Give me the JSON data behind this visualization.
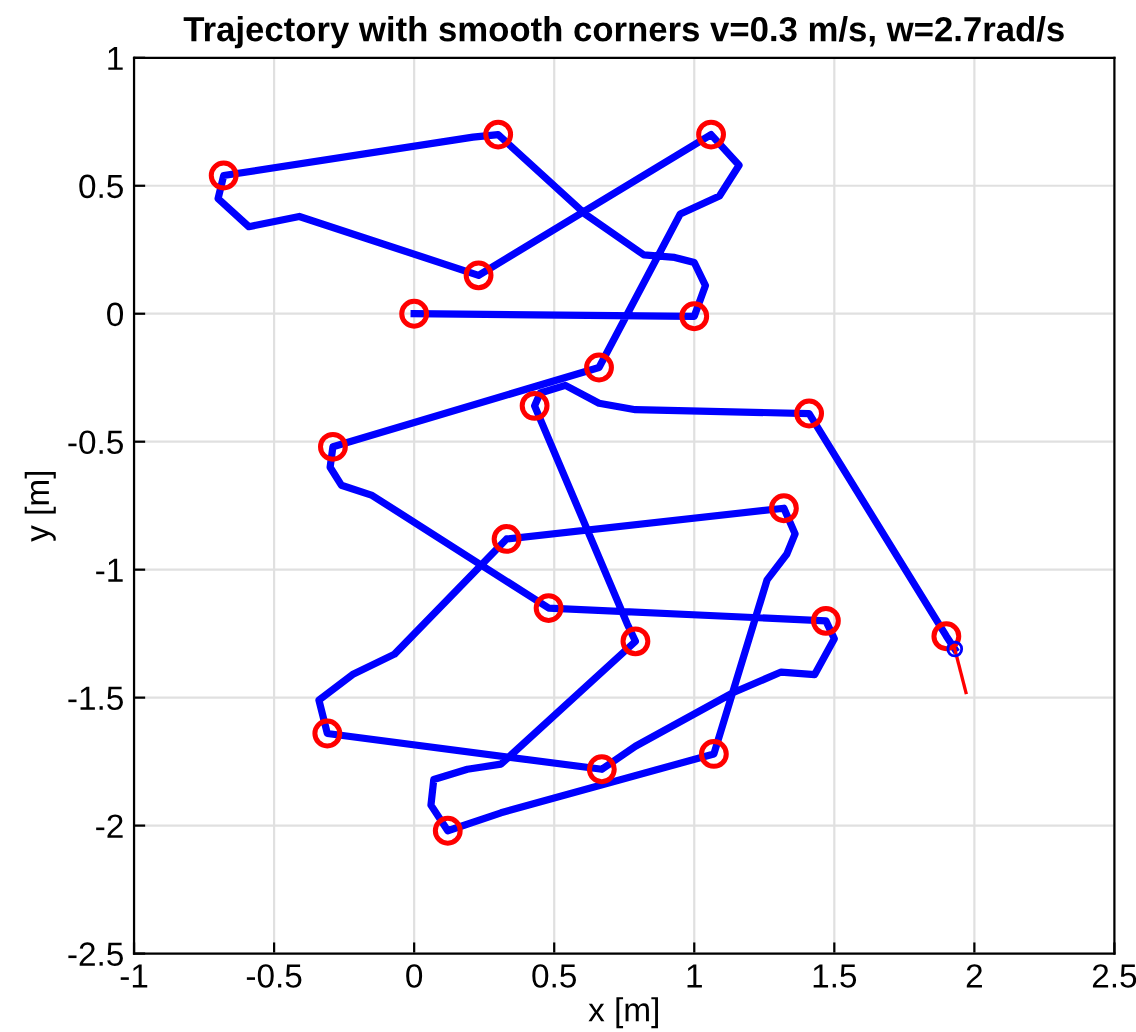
{
  "chart_data": {
    "type": "line",
    "title": "Trajectory with smooth corners v=0.3 m/s, w=2.7rad/s",
    "xlabel": "x [m]",
    "ylabel": "y [m]",
    "xlim": [
      -1,
      2.5
    ],
    "xticks": [
      -1,
      -0.5,
      0,
      0.5,
      1,
      1.5,
      2,
      2.5
    ],
    "ylim": [
      -2.5,
      1
    ],
    "yticks": [
      -2.5,
      -2,
      -1.5,
      -1,
      -0.5,
      0,
      0.5,
      1
    ],
    "grid": true,
    "series": [
      {
        "color": "#0000ff",
        "line_style": "solid",
        "marker": "none",
        "x": [
          0,
          1.0,
          1.04,
          1.0,
          0.93,
          0.82,
          0.61,
          0.3,
          0.21,
          -0.68,
          -0.7,
          -0.59,
          -0.41,
          0.23,
          1.06,
          1.16,
          1.09,
          0.95,
          0.66,
          -0.29,
          -0.3,
          -0.26,
          -0.15,
          0.48,
          1.47,
          1.5,
          1.43,
          1.31,
          1.14,
          0.79,
          0.67,
          -0.31,
          -0.34,
          -0.22,
          -0.07,
          0.33,
          1.32,
          1.36,
          1.33,
          1.26,
          1.07,
          0.31,
          0.12,
          0.06,
          0.07,
          0.19,
          0.31,
          0.79,
          0.76,
          0.43,
          0.45,
          0.54,
          0.66,
          0.79,
          1.41,
          1.9,
          1.93
        ],
        "values": [
          0,
          -0.01,
          0.11,
          0.2,
          0.22,
          0.23,
          0.39,
          0.7,
          0.69,
          0.54,
          0.45,
          0.34,
          0.38,
          0.15,
          0.7,
          0.58,
          0.46,
          0.39,
          -0.21,
          -0.52,
          -0.6,
          -0.67,
          -0.71,
          -1.15,
          -1.2,
          -1.27,
          -1.41,
          -1.4,
          -1.48,
          -1.69,
          -1.78,
          -1.64,
          -1.51,
          -1.41,
          -1.33,
          -0.88,
          -0.76,
          -0.86,
          -0.94,
          -1.04,
          -1.72,
          -1.95,
          -2.02,
          -1.92,
          -1.82,
          -1.78,
          -1.76,
          -1.28,
          -1.21,
          -0.36,
          -0.31,
          -0.28,
          -0.35,
          -0.375,
          -0.39,
          -1.26,
          -1.31
        ]
      },
      {
        "type": "scatter",
        "color": "#ff0000",
        "marker": "circle",
        "x": [
          0,
          1.0,
          0.3,
          -0.68,
          0.23,
          1.06,
          0.66,
          -0.29,
          0.48,
          1.47,
          0.67,
          -0.31,
          0.33,
          1.32,
          1.07,
          0.12,
          0.79,
          0.43,
          1.41,
          1.9
        ],
        "values": [
          0,
          -0.01,
          0.7,
          0.54,
          0.15,
          0.7,
          -0.21,
          -0.52,
          -1.15,
          -1.2,
          -1.78,
          -1.64,
          -0.88,
          -0.76,
          -1.72,
          -2.02,
          -1.28,
          -0.36,
          -0.39,
          -1.26
        ]
      },
      {
        "type": "scatter",
        "color": "#0000ff",
        "marker": "circle",
        "x": [
          1.93
        ],
        "values": [
          -1.31
        ]
      },
      {
        "color": "#ff0000",
        "line_style": "solid",
        "marker": "none",
        "x": [
          1.93,
          1.97
        ],
        "values": [
          -1.31,
          -1.48
        ]
      }
    ]
  }
}
